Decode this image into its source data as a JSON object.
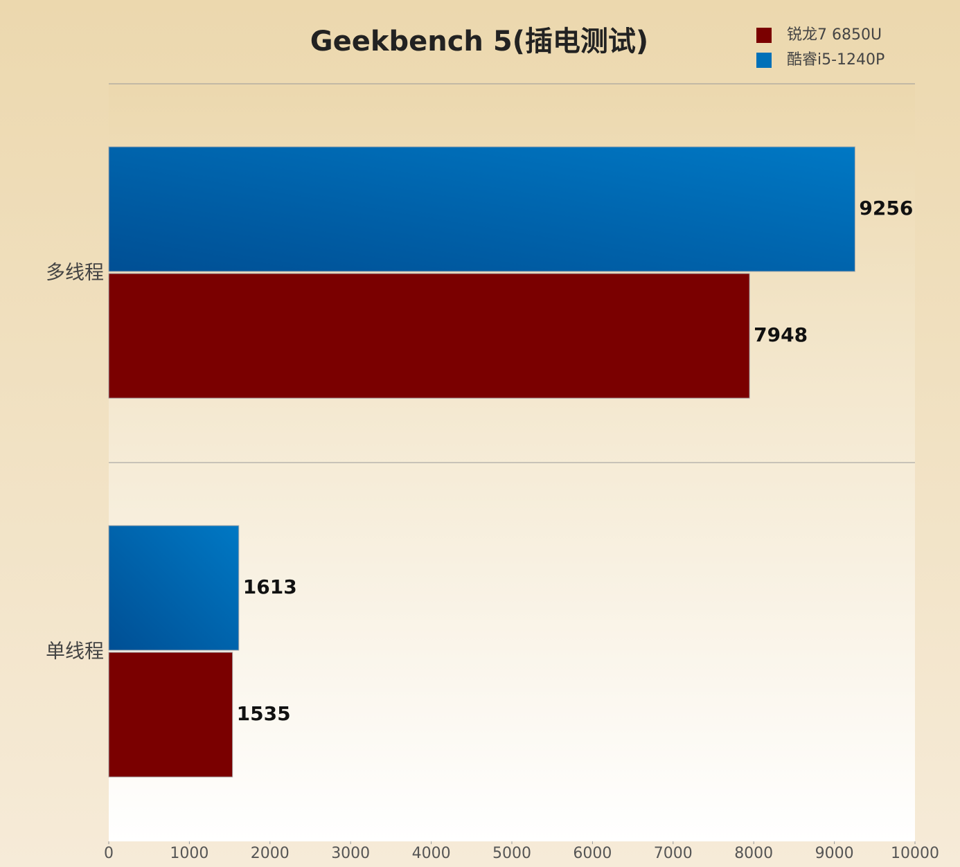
{
  "chart_data": {
    "type": "bar",
    "orientation": "horizontal",
    "title": "Geekbench 5(插电测试)",
    "categories": [
      "多线程",
      "单线程"
    ],
    "series": [
      {
        "name": "锐龙7 6850U",
        "color": "#7a0000",
        "values": [
          7948,
          1535
        ]
      },
      {
        "name": "酷睿i5-1240P",
        "color": "#0070b8",
        "values": [
          9256,
          1613
        ]
      }
    ],
    "xlim": [
      0,
      10000
    ],
    "xticks": [
      0,
      1000,
      2000,
      3000,
      4000,
      5000,
      6000,
      7000,
      8000,
      9000,
      10000
    ],
    "legend": "top-right"
  }
}
